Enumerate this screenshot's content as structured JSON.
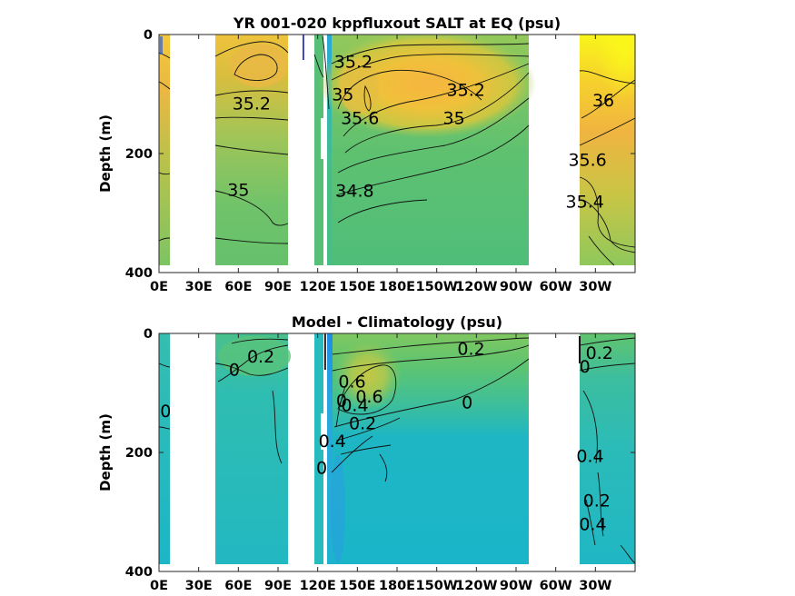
{
  "chart_data": [
    {
      "type": "contour",
      "title": "YR 001-020 kppfluxout SALT at EQ (psu)",
      "xlabel": "",
      "ylabel": "Depth (m)",
      "x_tick_labels": [
        "0E",
        "30E",
        "60E",
        "90E",
        "120E",
        "150E",
        "180E",
        "150W",
        "120W",
        "90W",
        "60W",
        "30W"
      ],
      "y_tick_labels": [
        "0",
        "200",
        "400"
      ],
      "xlim_deg_east": [
        0,
        360
      ],
      "ylim_m": [
        400,
        0
      ],
      "y_reversed": true,
      "colormap": "parula",
      "color_range_psu": [
        33.6,
        36.3
      ],
      "land_gaps_deg_east": [
        [
          8,
          43
        ],
        [
          98,
          118
        ],
        [
          120,
          124
        ],
        [
          285,
          318
        ]
      ],
      "contour_labels": [
        {
          "text": "35.2",
          "lon": 70,
          "depth": 115
        },
        {
          "text": "35",
          "lon": 60,
          "depth": 260
        },
        {
          "text": "35.2",
          "lon": 147,
          "depth": 45
        },
        {
          "text": "35",
          "lon": 139,
          "depth": 100
        },
        {
          "text": "35.6",
          "lon": 152,
          "depth": 140
        },
        {
          "text": "35.2",
          "lon": 232,
          "depth": 92
        },
        {
          "text": "35",
          "lon": 223,
          "depth": 140
        },
        {
          "text": "34.8",
          "lon": 148,
          "depth": 262
        },
        {
          "text": "36",
          "lon": 336,
          "depth": 110
        },
        {
          "text": "35.6",
          "lon": 324,
          "depth": 210
        },
        {
          "text": "35.4",
          "lon": 322,
          "depth": 280
        }
      ]
    },
    {
      "type": "contour",
      "title": "Model - Climatology (psu)",
      "xlabel": "",
      "ylabel": "Depth (m)",
      "x_tick_labels": [
        "0E",
        "30E",
        "60E",
        "90E",
        "120E",
        "150E",
        "180E",
        "150W",
        "120W",
        "90W",
        "60W",
        "30W"
      ],
      "y_tick_labels": [
        "0",
        "200",
        "400"
      ],
      "xlim_deg_east": [
        0,
        360
      ],
      "ylim_m": [
        400,
        0
      ],
      "y_reversed": true,
      "colormap": "parula",
      "color_range_psu": [
        -1.6,
        1.3
      ],
      "land_gaps_deg_east": [
        [
          8,
          43
        ],
        [
          98,
          118
        ],
        [
          120,
          124
        ],
        [
          285,
          318
        ]
      ],
      "contour_labels": [
        {
          "text": "0.2",
          "lon": 77,
          "depth": 38
        },
        {
          "text": "0",
          "lon": 57,
          "depth": 60
        },
        {
          "text": "0",
          "lon": 5,
          "depth": 130
        },
        {
          "text": "0.6",
          "lon": 146,
          "depth": 80
        },
        {
          "text": "0.6",
          "lon": 159,
          "depth": 105
        },
        {
          "text": "0.4",
          "lon": 148,
          "depth": 120
        },
        {
          "text": "0.2",
          "lon": 154,
          "depth": 150
        },
        {
          "text": "0",
          "lon": 138,
          "depth": 112
        },
        {
          "text": "0.4",
          "lon": 131,
          "depth": 180
        },
        {
          "text": "0",
          "lon": 123,
          "depth": 225
        },
        {
          "text": "0.2",
          "lon": 236,
          "depth": 25
        },
        {
          "text": "0",
          "lon": 233,
          "depth": 115
        },
        {
          "text": "0.2",
          "lon": 333,
          "depth": 32
        },
        {
          "text": "0",
          "lon": 322,
          "depth": 55
        },
        {
          "text": "0.4",
          "lon": 326,
          "depth": 205
        },
        {
          "text": "0.2",
          "lon": 331,
          "depth": 280
        },
        {
          "text": "0.4",
          "lon": 328,
          "depth": 320
        }
      ]
    }
  ]
}
